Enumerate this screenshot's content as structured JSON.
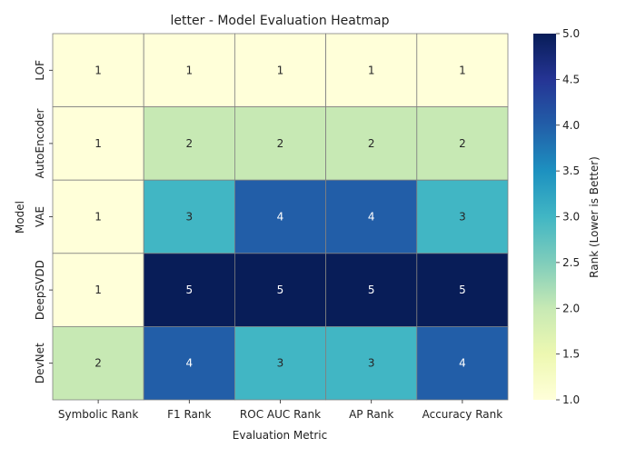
{
  "chart_data": {
    "type": "heatmap",
    "title": "letter - Model Evaluation Heatmap",
    "xlabel": "Evaluation Metric",
    "ylabel": "Model",
    "x_categories": [
      "Symbolic Rank",
      "F1 Rank",
      "ROC AUC Rank",
      "AP Rank",
      "Accuracy Rank"
    ],
    "y_categories": [
      "LOF",
      "AutoEncoder",
      "VAE",
      "DeepSVDD",
      "DevNet"
    ],
    "values": [
      [
        1,
        1,
        1,
        1,
        1
      ],
      [
        1,
        2,
        2,
        2,
        2
      ],
      [
        1,
        3,
        4,
        4,
        3
      ],
      [
        1,
        5,
        5,
        5,
        5
      ],
      [
        2,
        4,
        3,
        3,
        4
      ]
    ],
    "colorbar": {
      "label": "Rank (Lower is Better)",
      "range": [
        1.0,
        5.0
      ],
      "ticks": [
        "1.0",
        "1.5",
        "2.0",
        "2.5",
        "3.0",
        "3.5",
        "4.0",
        "4.5",
        "5.0"
      ],
      "colormap": "YlGnBu"
    },
    "grid": true,
    "annotated": true
  }
}
